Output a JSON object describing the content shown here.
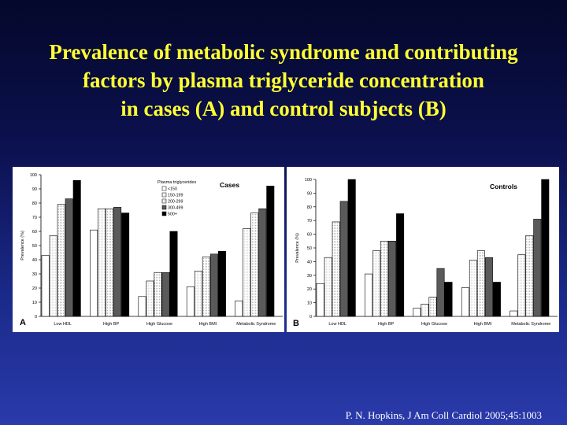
{
  "slide": {
    "title_lines": [
      "Prevalence of metabolic syndrome and contributing",
      "factors by plasma triglyceride concentration",
      "in cases (A) and control subjects (B)"
    ],
    "citation": "P. N. Hopkins, J Am Coll Cardiol 2005;45:1003"
  },
  "chart_data": [
    {
      "type": "bar",
      "panel_letter": "A",
      "title": "Cases",
      "ylabel": "Prevalence (%)",
      "ylim": [
        0,
        100
      ],
      "yticks": [
        0,
        10,
        20,
        30,
        40,
        50,
        60,
        70,
        80,
        90,
        100
      ],
      "categories": [
        "Low HDL",
        "High BP",
        "High Glucose",
        "High BMI",
        "Metabolic Syndrome"
      ],
      "legend_title": "Plasma triglycerides",
      "legend_position": "top-center",
      "series": [
        {
          "name": "<150",
          "color": "#ffffff",
          "values": [
            43,
            61,
            14,
            21,
            11
          ]
        },
        {
          "name": "150-199",
          "color": "#e6e6e6",
          "values": [
            57,
            76,
            25,
            32,
            62
          ]
        },
        {
          "name": "200-299",
          "color": "#c4c4c4",
          "values": [
            79,
            76,
            31,
            42,
            73
          ]
        },
        {
          "name": "300-499",
          "color": "#5a5a5a",
          "values": [
            83,
            77,
            31,
            44,
            76
          ]
        },
        {
          "name": "500+",
          "color": "#000000",
          "values": [
            96,
            73,
            60,
            46,
            92
          ]
        }
      ]
    },
    {
      "type": "bar",
      "panel_letter": "B",
      "title": "Controls",
      "ylabel": "Prevalence (%)",
      "ylim": [
        0,
        100
      ],
      "yticks": [
        0,
        10,
        20,
        30,
        40,
        50,
        60,
        70,
        80,
        90,
        100
      ],
      "categories": [
        "Low HDL",
        "High BP",
        "High Glucose",
        "High BMI",
        "Metabolic Syndrome"
      ],
      "series": [
        {
          "color": "#ffffff",
          "values": [
            24,
            31,
            6,
            21,
            4
          ]
        },
        {
          "color": "#e6e6e6",
          "values": [
            43,
            48,
            9,
            41,
            45
          ]
        },
        {
          "color": "#c4c4c4",
          "values": [
            69,
            55,
            14,
            48,
            59
          ]
        },
        {
          "color": "#5a5a5a",
          "values": [
            84,
            55,
            35,
            43,
            71
          ]
        },
        {
          "color": "#000000",
          "values": [
            100,
            75,
            25,
            25,
            100
          ]
        }
      ]
    }
  ]
}
